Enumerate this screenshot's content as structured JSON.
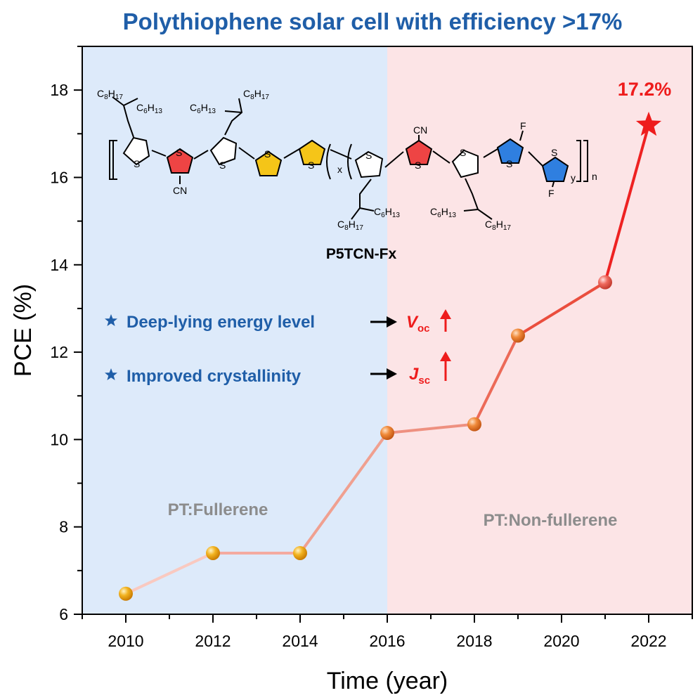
{
  "chart_data": {
    "type": "line",
    "title": "Polythiophene solar cell with efficiency >17%",
    "xlabel": "Time (year)",
    "ylabel": "PCE (%)",
    "xlim": [
      2009,
      2023
    ],
    "ylim": [
      6,
      19
    ],
    "xticks": [
      2010,
      2012,
      2014,
      2016,
      2018,
      2020,
      2022
    ],
    "yticks": [
      6,
      8,
      10,
      12,
      14,
      16,
      18
    ],
    "x": [
      2010,
      2012,
      2014,
      2016,
      2018,
      2019,
      2021,
      2022
    ],
    "y": [
      6.47,
      7.4,
      7.4,
      10.15,
      10.35,
      12.38,
      13.6,
      17.2
    ],
    "regions": [
      {
        "label": "PT:Fullerene",
        "x_range": [
          2009,
          2016
        ],
        "color": "#ddeafa"
      },
      {
        "label": "PT:Non-fullerene",
        "x_range": [
          2016,
          2023
        ],
        "color": "#fce4e6"
      }
    ],
    "record": {
      "label": "17.2%",
      "x": 2022,
      "y": 17.2,
      "marker": "star",
      "color": "#ee1c1c"
    },
    "grid": false,
    "legend": "none"
  },
  "annotations": {
    "polymer_name": "P5TCN-Fx",
    "bullet_1": "Deep-lying energy level",
    "bullet_2": "Improved crystallinity",
    "param_1": {
      "main": "V",
      "sub": "oc"
    },
    "param_2": {
      "main": "J",
      "sub": "sc"
    }
  },
  "structure_labels": {
    "c8h17": {
      "main": "C",
      "n1": "8",
      "h": "H",
      "n2": "17"
    },
    "c6h13": {
      "main": "C",
      "n1": "6",
      "h": "H",
      "n2": "13"
    },
    "s": "S",
    "cn": "CN",
    "f": "F",
    "x": "x",
    "y": "y",
    "n": "n"
  },
  "colors": {
    "accent_blue": "#1f5ea8",
    "accent_red": "#ee1c1c",
    "thiophene_red": "#ee4444",
    "thiophene_yellow": "#f5c518",
    "thiophene_blue": "#2f7fe0"
  }
}
